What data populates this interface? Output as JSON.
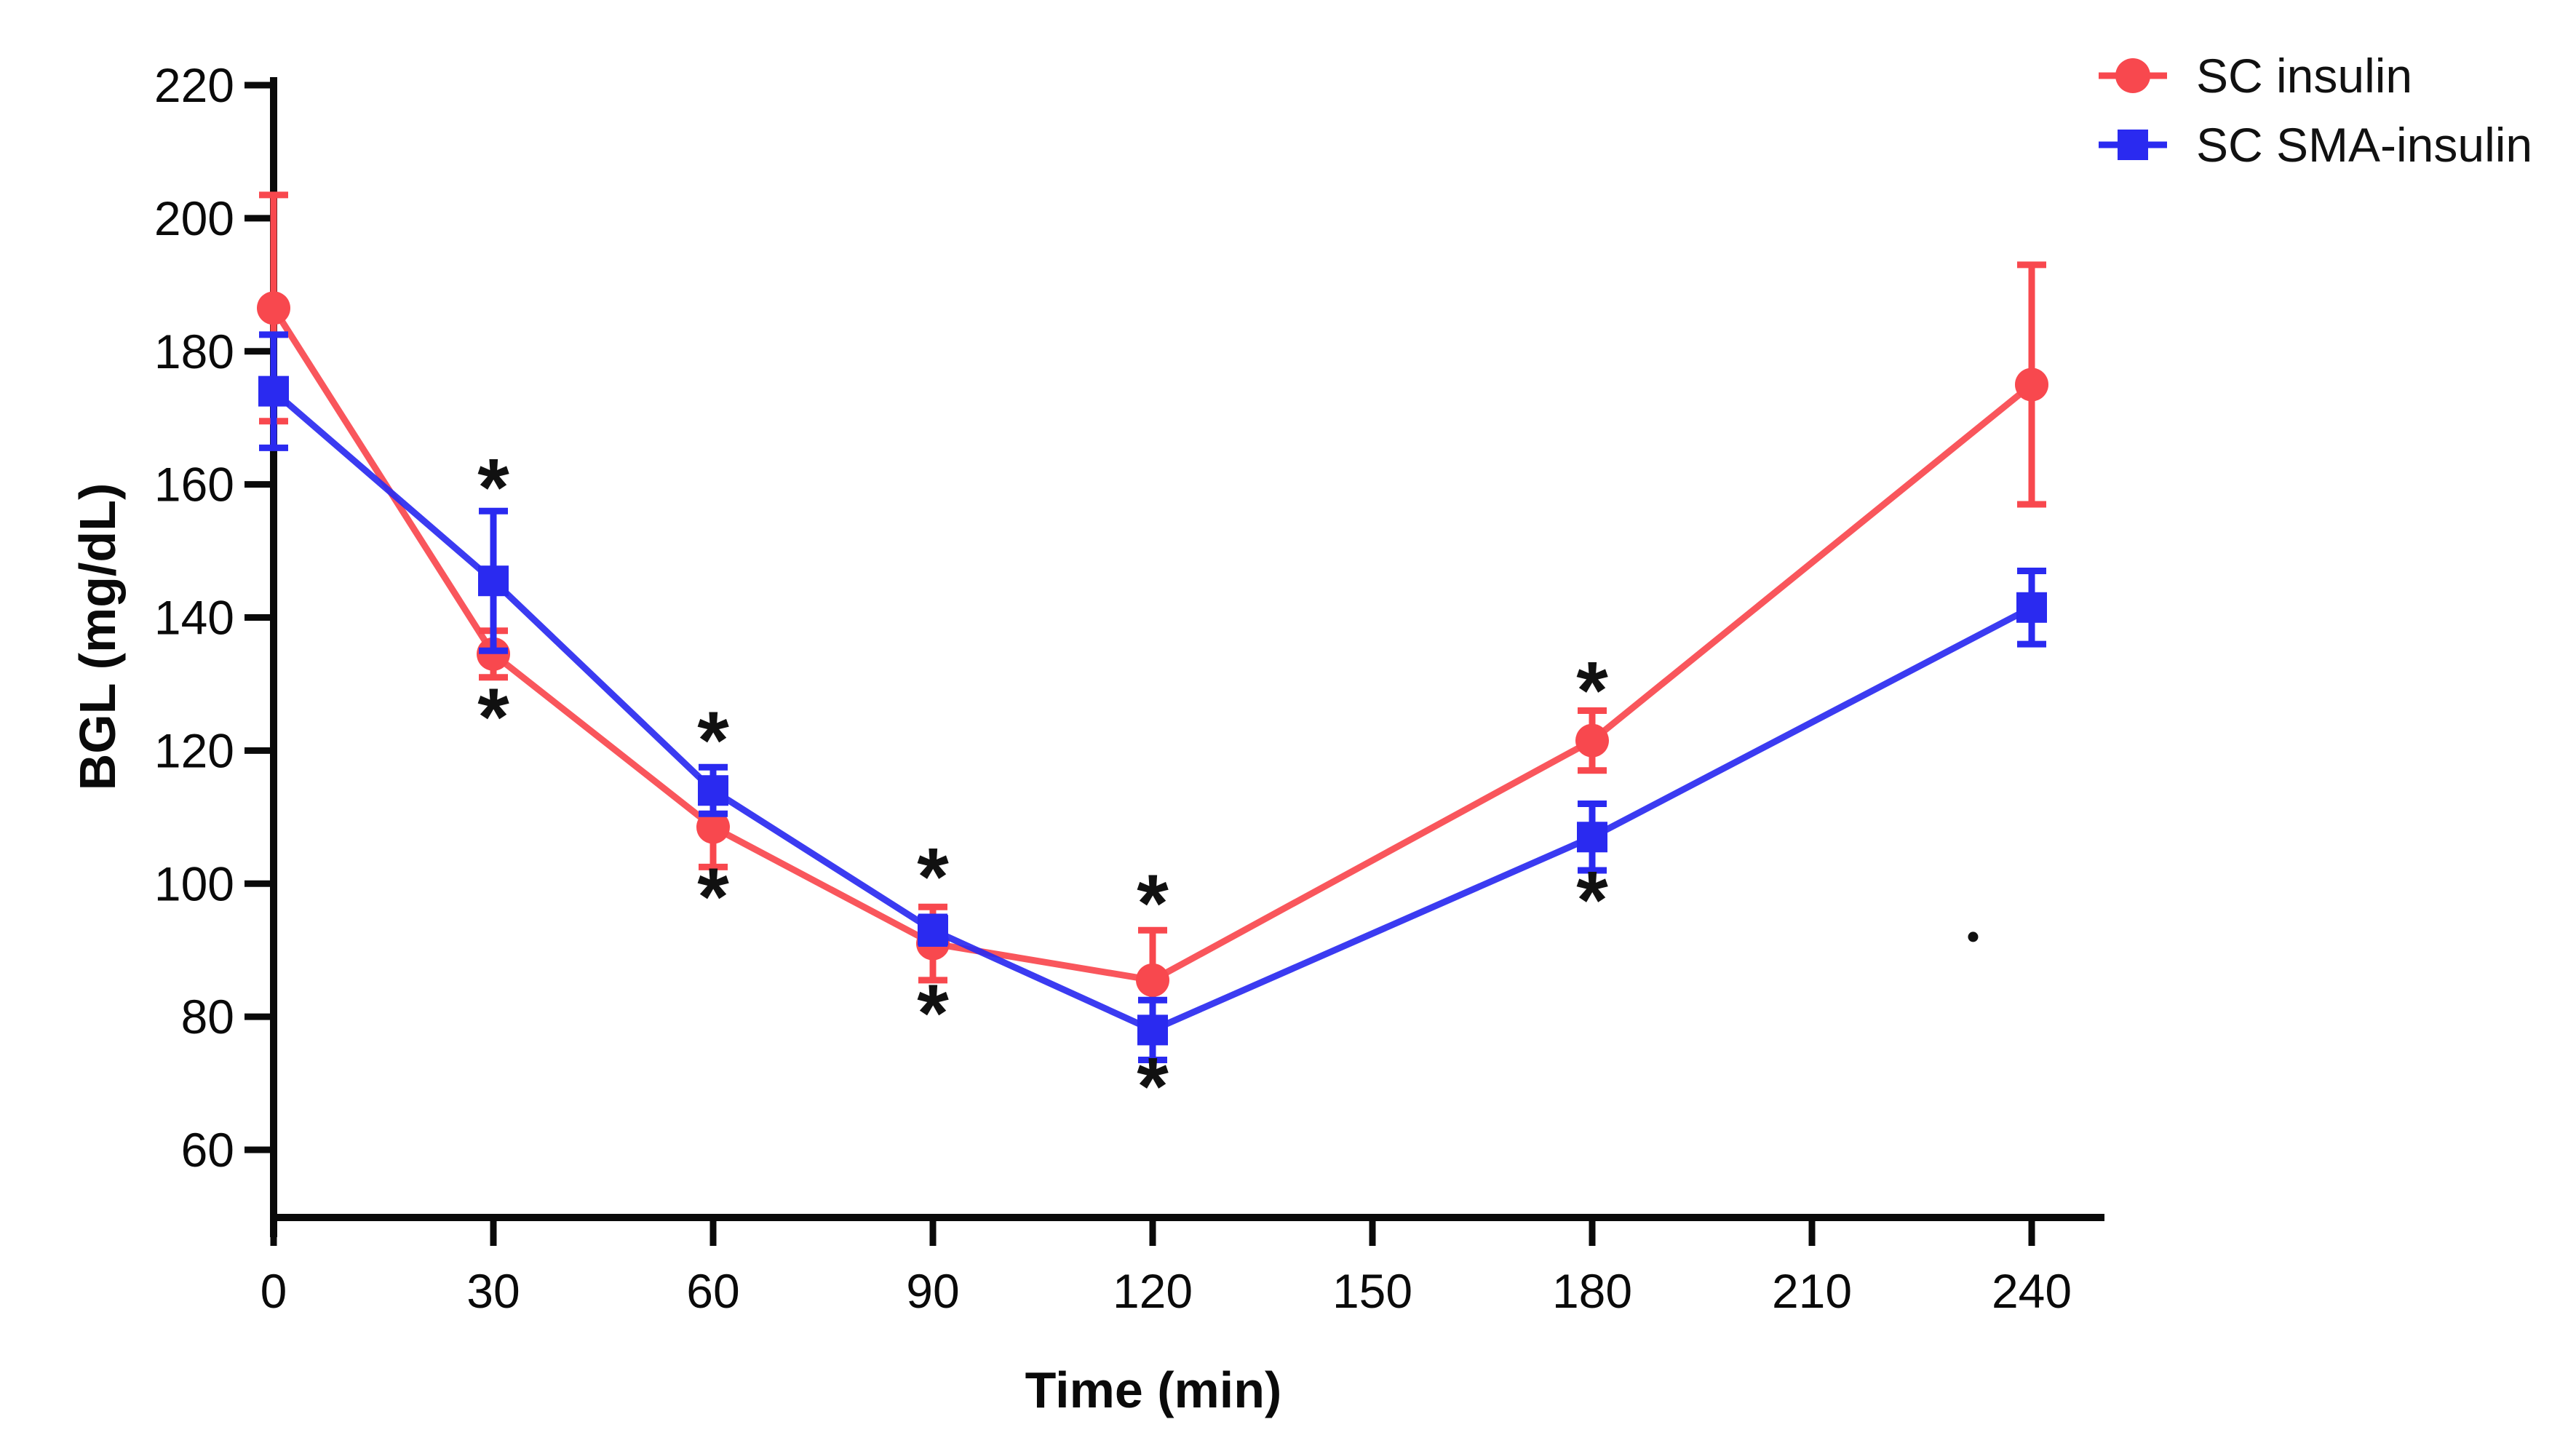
{
  "chart_data": {
    "type": "line",
    "title": "",
    "xlabel": "Time (min)",
    "ylabel": "BGL (mg/dL)",
    "x": [
      0,
      30,
      60,
      90,
      120,
      180,
      240
    ],
    "x_ticks": [
      0,
      30,
      60,
      90,
      120,
      150,
      180,
      210,
      240
    ],
    "y_ticks": [
      60,
      80,
      100,
      120,
      140,
      160,
      180,
      200,
      220
    ],
    "xlim": [
      0,
      250
    ],
    "ylim": [
      50,
      220
    ],
    "grid": false,
    "legend_position": "top-right",
    "axis_color": "#0a0a0a",
    "series": [
      {
        "name": "SC insulin",
        "color": "#f8484e",
        "marker": "circle",
        "values": [
          186.5,
          134.5,
          108.5,
          91,
          85.5,
          121.5,
          175
        ],
        "errors": [
          17,
          3.5,
          6,
          5.5,
          7.5,
          4.5,
          18
        ]
      },
      {
        "name": "SC SMA-insulin",
        "color": "#2a2af0",
        "marker": "square",
        "values": [
          174,
          145.5,
          114,
          93,
          78,
          107,
          141.5
        ],
        "errors": [
          8.5,
          10.5,
          3.5,
          2,
          4.5,
          5,
          5.5
        ]
      }
    ],
    "significance_markers": [
      {
        "x": 30,
        "above": 161,
        "below": 126.5,
        "symbol": "*"
      },
      {
        "x": 60,
        "above": 123,
        "below": 99.5,
        "symbol": "*"
      },
      {
        "x": 90,
        "above": 102.5,
        "below": 82,
        "symbol": "*"
      },
      {
        "x": 120,
        "above": 98.5,
        "below": 71,
        "symbol": "*"
      },
      {
        "x": 180,
        "above": 130.5,
        "below": 99,
        "symbol": "*"
      }
    ],
    "artifact_dot": {
      "x": 232,
      "y": 92
    }
  }
}
